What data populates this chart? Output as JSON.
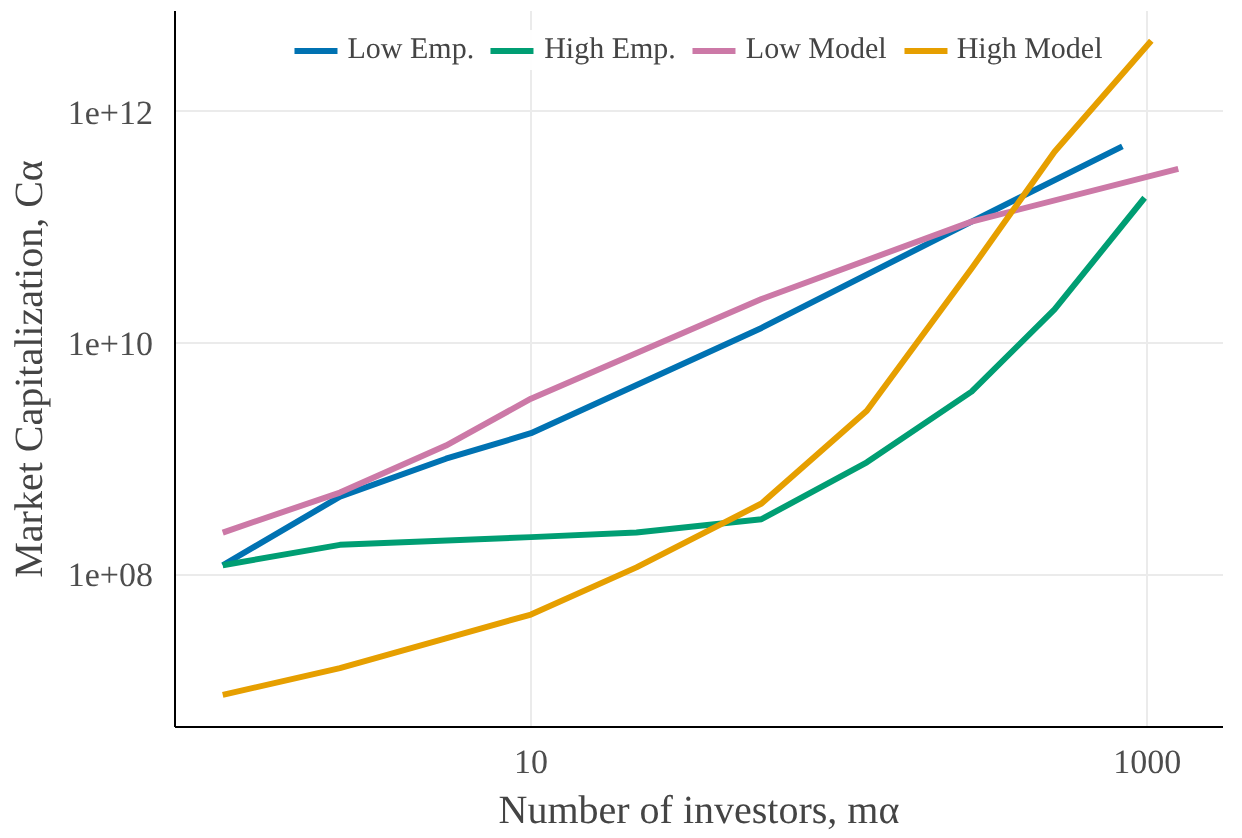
{
  "chart_data": {
    "type": "line",
    "xlabel": "Number of investors, mα",
    "ylabel": "Market Capitalization, Cα",
    "log": "xy",
    "grid": true,
    "legend": "top",
    "line_style": "solid",
    "marker": "none",
    "xlim": [
      0.7,
      1760
    ],
    "ylim": [
      4800000.0,
      7400000000000.0
    ],
    "xticks": [
      10,
      1000
    ],
    "yticks": [
      {
        "value": 100000000.0,
        "label": "1e+08"
      },
      {
        "value": 10000000000.0,
        "label": "1e+10"
      },
      {
        "value": 1000000000000.0,
        "label": "1e+12"
      }
    ],
    "series": [
      {
        "name": "Low Emp.",
        "color": "#0072b2",
        "x": [
          1,
          2.4,
          5.3,
          10,
          56,
          269,
          830
        ],
        "values": [
          120000000.0,
          470000000.0,
          1000000000.0,
          1660000000.0,
          13500000000.0,
          112000000000.0,
          500000000000.0
        ]
      },
      {
        "name": "High Emp.",
        "color": "#009e73",
        "x": [
          1,
          2.4,
          10,
          22,
          56,
          123,
          269,
          500,
          980
        ],
        "values": [
          120000000.0,
          180000000.0,
          210000000.0,
          230000000.0,
          300000000.0,
          930000000.0,
          3800000000.0,
          19500000000.0,
          180000000000.0
        ]
      },
      {
        "name": "Low Model",
        "color": "#cc79a7",
        "x": [
          1,
          2.4,
          5.3,
          10,
          56,
          269,
          1260
        ],
        "values": [
          230000000.0,
          510000000.0,
          1300000000.0,
          3300000000.0,
          24000000000.0,
          112000000000.0,
          320000000000.0
        ]
      },
      {
        "name": "High Model",
        "color": "#e69f00",
        "x": [
          1,
          2.4,
          5.3,
          10,
          22,
          56,
          123,
          269,
          500,
          1030
        ],
        "values": [
          9100000.0,
          15500000.0,
          28000000.0,
          45000000.0,
          115000000.0,
          410000000.0,
          2600000000.0,
          44000000000.0,
          450000000000.0,
          4100000000000.0
        ]
      }
    ]
  }
}
